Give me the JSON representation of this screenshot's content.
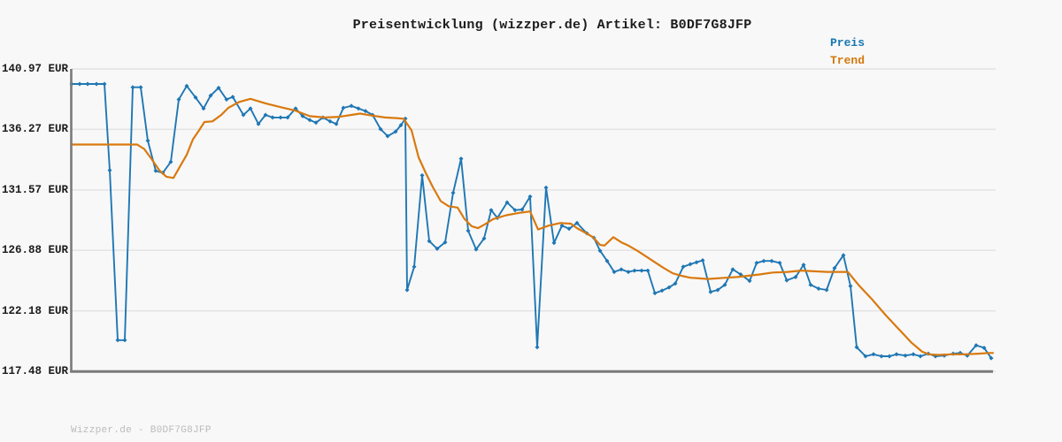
{
  "page": {
    "title": "Preisentwicklung (wizzper.de) Artikel: B0DF7G8JFP",
    "footer": "Wizzper.de - B0DF7G8JFP"
  },
  "legend": {
    "price_label": "Preis",
    "trend_label": "Trend"
  },
  "colors": {
    "price": "#1f77b4",
    "trend": "#d9790f",
    "grid": "#e3e3e3",
    "axis": "#7a7a7a",
    "title_text": "#1c1c1c",
    "footer_text": "#bbbbbb",
    "background": "#f8f8f8"
  },
  "chart_data": {
    "type": "line",
    "title": "Preisentwicklung (wizzper.de) Artikel: B0DF7G8JFP",
    "ylabel": "EUR",
    "xlabel": "",
    "x_unit": "pixel-position (no x-axis tick labels shown in chart)",
    "ylim": [
      117.48,
      140.97
    ],
    "grid": true,
    "legend_position": "top-right",
    "y_ticks": [
      "140.97 EUR",
      "136.27 EUR",
      "131.57 EUR",
      "126.88 EUR",
      "122.18 EUR",
      "117.48 EUR"
    ],
    "y_tick_values": [
      140.97,
      136.27,
      131.57,
      126.88,
      122.18,
      117.48
    ],
    "series": [
      {
        "name": "Preis",
        "color": "#1f77b4",
        "markers": true,
        "points": [
          [
            81,
            139.8
          ],
          [
            90,
            139.8
          ],
          [
            99,
            139.8
          ],
          [
            109,
            139.8
          ],
          [
            118,
            139.8
          ],
          [
            124,
            133.1
          ],
          [
            133,
            119.9
          ],
          [
            141,
            119.9
          ],
          [
            150,
            139.55
          ],
          [
            159,
            139.55
          ],
          [
            167,
            135.4
          ],
          [
            176,
            133.05
          ],
          [
            184,
            132.9
          ],
          [
            193,
            133.75
          ],
          [
            202,
            138.6
          ],
          [
            211,
            139.65
          ],
          [
            221,
            138.75
          ],
          [
            230,
            137.9
          ],
          [
            238,
            138.9
          ],
          [
            247,
            139.5
          ],
          [
            256,
            138.6
          ],
          [
            263,
            138.8
          ],
          [
            275,
            137.4
          ],
          [
            283,
            137.9
          ],
          [
            292,
            136.7
          ],
          [
            300,
            137.4
          ],
          [
            308,
            137.2
          ],
          [
            317,
            137.2
          ],
          [
            325,
            137.2
          ],
          [
            334,
            137.9
          ],
          [
            342,
            137.3
          ],
          [
            350,
            137.0
          ],
          [
            357,
            136.8
          ],
          [
            365,
            137.2
          ],
          [
            373,
            136.9
          ],
          [
            380,
            136.7
          ],
          [
            388,
            137.95
          ],
          [
            397,
            138.1
          ],
          [
            405,
            137.9
          ],
          [
            413,
            137.7
          ],
          [
            421,
            137.4
          ],
          [
            430,
            136.3
          ],
          [
            438,
            135.75
          ],
          [
            447,
            136.1
          ],
          [
            453,
            136.6
          ],
          [
            458,
            137.1
          ],
          [
            460,
            123.8
          ],
          [
            468,
            125.6
          ],
          [
            477,
            132.7
          ],
          [
            485,
            127.6
          ],
          [
            494,
            127.0
          ],
          [
            503,
            127.5
          ],
          [
            512,
            131.35
          ],
          [
            521,
            134.0
          ],
          [
            529,
            128.4
          ],
          [
            538,
            126.95
          ],
          [
            547,
            127.8
          ],
          [
            555,
            130.0
          ],
          [
            562,
            129.4
          ],
          [
            573,
            130.6
          ],
          [
            582,
            130.0
          ],
          [
            590,
            130.05
          ],
          [
            599,
            131.05
          ],
          [
            607,
            119.35
          ],
          [
            617,
            131.75
          ],
          [
            626,
            127.45
          ],
          [
            635,
            128.8
          ],
          [
            643,
            128.55
          ],
          [
            652,
            129.0
          ],
          [
            663,
            128.2
          ],
          [
            671,
            127.85
          ],
          [
            678,
            126.85
          ],
          [
            686,
            126.05
          ],
          [
            694,
            125.2
          ],
          [
            702,
            125.4
          ],
          [
            710,
            125.2
          ],
          [
            717,
            125.3
          ],
          [
            725,
            125.3
          ],
          [
            732,
            125.3
          ],
          [
            740,
            123.55
          ],
          [
            748,
            123.75
          ],
          [
            756,
            124.0
          ],
          [
            763,
            124.3
          ],
          [
            772,
            125.6
          ],
          [
            780,
            125.8
          ],
          [
            787,
            125.95
          ],
          [
            794,
            126.1
          ],
          [
            803,
            123.65
          ],
          [
            811,
            123.8
          ],
          [
            819,
            124.2
          ],
          [
            828,
            125.4
          ],
          [
            837,
            125.0
          ],
          [
            847,
            124.5
          ],
          [
            855,
            125.9
          ],
          [
            863,
            126.05
          ],
          [
            872,
            126.05
          ],
          [
            881,
            125.9
          ],
          [
            889,
            124.55
          ],
          [
            899,
            124.8
          ],
          [
            908,
            125.75
          ],
          [
            916,
            124.2
          ],
          [
            925,
            123.9
          ],
          [
            934,
            123.8
          ],
          [
            943,
            125.5
          ],
          [
            953,
            126.5
          ],
          [
            961,
            124.1
          ],
          [
            968,
            119.35
          ],
          [
            978,
            118.65
          ],
          [
            987,
            118.8
          ],
          [
            996,
            118.65
          ],
          [
            1005,
            118.65
          ],
          [
            1013,
            118.8
          ],
          [
            1023,
            118.7
          ],
          [
            1032,
            118.8
          ],
          [
            1040,
            118.65
          ],
          [
            1049,
            118.85
          ],
          [
            1057,
            118.65
          ],
          [
            1067,
            118.7
          ],
          [
            1077,
            118.85
          ],
          [
            1085,
            118.9
          ],
          [
            1093,
            118.7
          ],
          [
            1103,
            119.5
          ],
          [
            1112,
            119.3
          ],
          [
            1120,
            118.5
          ]
        ]
      },
      {
        "name": "Trend",
        "color": "#d9790f",
        "markers": false,
        "points": [
          [
            81,
            135.1
          ],
          [
            100,
            135.1
          ],
          [
            120,
            135.1
          ],
          [
            140,
            135.1
          ],
          [
            155,
            135.1
          ],
          [
            163,
            134.75
          ],
          [
            171,
            134.0
          ],
          [
            180,
            133.1
          ],
          [
            188,
            132.6
          ],
          [
            196,
            132.5
          ],
          [
            203,
            133.35
          ],
          [
            211,
            134.3
          ],
          [
            218,
            135.5
          ],
          [
            225,
            136.2
          ],
          [
            231,
            136.85
          ],
          [
            240,
            136.9
          ],
          [
            250,
            137.4
          ],
          [
            258,
            137.95
          ],
          [
            270,
            138.4
          ],
          [
            283,
            138.65
          ],
          [
            300,
            138.3
          ],
          [
            317,
            138.0
          ],
          [
            333,
            137.75
          ],
          [
            350,
            137.3
          ],
          [
            367,
            137.2
          ],
          [
            383,
            137.25
          ],
          [
            397,
            137.4
          ],
          [
            407,
            137.5
          ],
          [
            420,
            137.35
          ],
          [
            435,
            137.2
          ],
          [
            448,
            137.15
          ],
          [
            456,
            137.1
          ],
          [
            465,
            136.2
          ],
          [
            473,
            134.1
          ],
          [
            481,
            132.9
          ],
          [
            489,
            131.8
          ],
          [
            498,
            130.7
          ],
          [
            507,
            130.3
          ],
          [
            517,
            130.2
          ],
          [
            525,
            129.3
          ],
          [
            533,
            128.75
          ],
          [
            540,
            128.6
          ],
          [
            548,
            128.9
          ],
          [
            557,
            129.3
          ],
          [
            572,
            129.6
          ],
          [
            588,
            129.8
          ],
          [
            599,
            129.9
          ],
          [
            608,
            128.5
          ],
          [
            620,
            128.8
          ],
          [
            633,
            129.0
          ],
          [
            645,
            128.95
          ],
          [
            652,
            128.6
          ],
          [
            660,
            128.3
          ],
          [
            670,
            127.9
          ],
          [
            678,
            127.3
          ],
          [
            683,
            127.25
          ],
          [
            693,
            127.9
          ],
          [
            702,
            127.5
          ],
          [
            710,
            127.25
          ],
          [
            720,
            126.85
          ],
          [
            730,
            126.4
          ],
          [
            740,
            125.95
          ],
          [
            750,
            125.5
          ],
          [
            760,
            125.1
          ],
          [
            770,
            124.9
          ],
          [
            780,
            124.75
          ],
          [
            790,
            124.7
          ],
          [
            800,
            124.65
          ],
          [
            810,
            124.7
          ],
          [
            820,
            124.75
          ],
          [
            833,
            124.8
          ],
          [
            845,
            124.9
          ],
          [
            858,
            125.0
          ],
          [
            873,
            125.15
          ],
          [
            890,
            125.2
          ],
          [
            905,
            125.3
          ],
          [
            920,
            125.25
          ],
          [
            935,
            125.2
          ],
          [
            950,
            125.2
          ],
          [
            958,
            125.2
          ],
          [
            970,
            124.2
          ],
          [
            985,
            123.1
          ],
          [
            1000,
            121.9
          ],
          [
            1015,
            120.8
          ],
          [
            1030,
            119.7
          ],
          [
            1042,
            119.0
          ],
          [
            1050,
            118.8
          ],
          [
            1060,
            118.75
          ],
          [
            1075,
            118.8
          ],
          [
            1090,
            118.8
          ],
          [
            1105,
            118.85
          ],
          [
            1117,
            118.9
          ],
          [
            1122,
            118.9
          ]
        ]
      }
    ]
  }
}
